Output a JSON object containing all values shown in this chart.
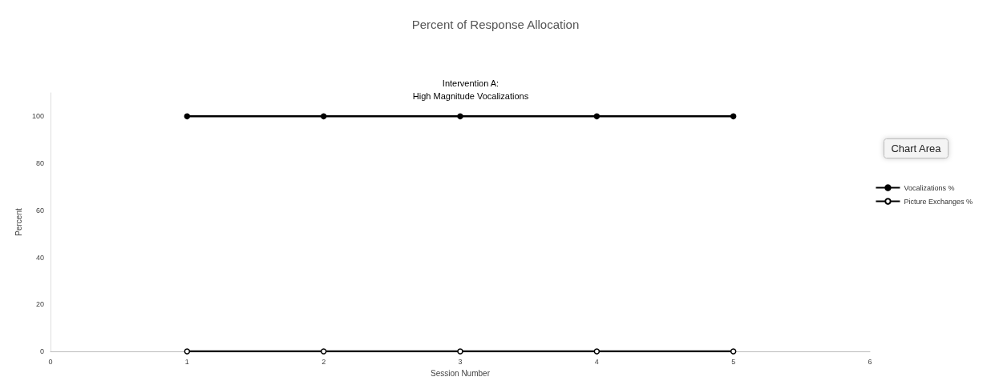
{
  "chart_data": {
    "type": "line",
    "title": "Percent of Response Allocation",
    "subtitle": "Intervention A:\nHigh Magnitude Vocalizations",
    "xlabel": "Session Number",
    "ylabel": "Percent",
    "x": [
      1,
      2,
      3,
      4,
      5
    ],
    "series": [
      {
        "name": "Vocalizations %",
        "color": "#000000",
        "values": [
          100,
          100,
          100,
          100,
          100
        ]
      },
      {
        "name": "Picture Exchanges %",
        "color": "#000000",
        "values": [
          0,
          0,
          0,
          0,
          0
        ]
      }
    ],
    "xlim": [
      0,
      6
    ],
    "xticks": [
      0,
      1,
      2,
      3,
      4,
      5,
      6
    ],
    "ylim": [
      0,
      110
    ],
    "yticks": [
      0,
      20,
      40,
      60,
      80,
      100
    ],
    "grid": false,
    "legend": "right",
    "marker": "circle",
    "line_style": "solid",
    "annotations": [
      "Chart Area"
    ]
  }
}
